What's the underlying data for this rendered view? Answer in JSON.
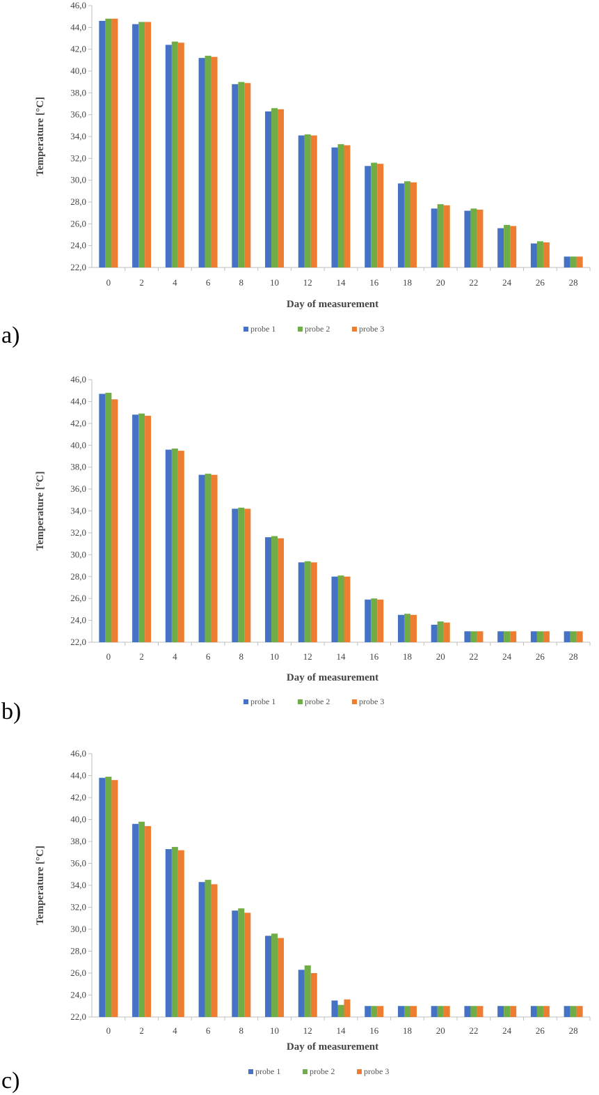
{
  "colors": {
    "probe 1": "#4472c4",
    "probe 2": "#70ad47",
    "probe 3": "#ed7d31"
  },
  "chart_data": [
    {
      "type": "bar",
      "panel_label": "a)",
      "categories": [
        "0",
        "2",
        "4",
        "6",
        "8",
        "10",
        "12",
        "14",
        "16",
        "18",
        "20",
        "22",
        "24",
        "26",
        "28"
      ],
      "series": [
        {
          "name": "probe 1",
          "values": [
            44.6,
            44.3,
            42.4,
            41.2,
            38.8,
            36.3,
            34.1,
            33.0,
            31.3,
            29.7,
            27.4,
            27.2,
            25.6,
            24.2,
            23.0
          ]
        },
        {
          "name": "probe 2",
          "values": [
            44.8,
            44.5,
            42.7,
            41.4,
            39.0,
            36.6,
            34.2,
            33.3,
            31.6,
            29.9,
            27.8,
            27.4,
            25.9,
            24.4,
            23.0
          ]
        },
        {
          "name": "probe 3",
          "values": [
            44.8,
            44.5,
            42.6,
            41.3,
            38.9,
            36.5,
            34.1,
            33.2,
            31.5,
            29.8,
            27.7,
            27.3,
            25.8,
            24.3,
            23.0
          ]
        }
      ],
      "title": "",
      "xlabel": "Day of measurement",
      "ylabel": "Temperature [°C]",
      "ylim": [
        22,
        46
      ],
      "yticks": [
        "22,0",
        "24,0",
        "26,0",
        "28,0",
        "30,0",
        "32,0",
        "34,0",
        "36,0",
        "38,0",
        "40,0",
        "42,0",
        "44,0",
        "46,0"
      ],
      "legend": "bottom",
      "grid": false
    },
    {
      "type": "bar",
      "panel_label": "b)",
      "categories": [
        "0",
        "2",
        "4",
        "6",
        "8",
        "10",
        "12",
        "14",
        "16",
        "18",
        "20",
        "22",
        "24",
        "26",
        "28"
      ],
      "series": [
        {
          "name": "probe 1",
          "values": [
            44.7,
            42.8,
            39.6,
            37.3,
            34.2,
            31.6,
            29.3,
            28.0,
            25.9,
            24.5,
            23.6,
            23.0,
            23.0,
            23.0,
            23.0
          ]
        },
        {
          "name": "probe 2",
          "values": [
            44.8,
            42.9,
            39.7,
            37.4,
            34.3,
            31.7,
            29.4,
            28.1,
            26.0,
            24.6,
            23.9,
            23.0,
            23.0,
            23.0,
            23.0
          ]
        },
        {
          "name": "probe 3",
          "values": [
            44.2,
            42.7,
            39.5,
            37.3,
            34.2,
            31.5,
            29.3,
            28.0,
            25.9,
            24.5,
            23.8,
            23.0,
            23.0,
            23.0,
            23.0
          ]
        }
      ],
      "title": "",
      "xlabel": "Day of measurement",
      "ylabel": "Temperature [°C]",
      "ylim": [
        22,
        46
      ],
      "yticks": [
        "22,0",
        "24,0",
        "26,0",
        "28,0",
        "30,0",
        "32,0",
        "34,0",
        "36,0",
        "38,0",
        "40,0",
        "42,0",
        "44,0",
        "46,0"
      ],
      "legend": "bottom",
      "grid": false
    },
    {
      "type": "bar",
      "panel_label": "c)",
      "categories": [
        "0",
        "2",
        "4",
        "6",
        "8",
        "10",
        "12",
        "14",
        "16",
        "18",
        "20",
        "22",
        "24",
        "26",
        "28"
      ],
      "series": [
        {
          "name": "probe 1",
          "values": [
            43.8,
            39.6,
            37.3,
            34.3,
            31.7,
            29.4,
            26.3,
            23.5,
            23.0,
            23.0,
            23.0,
            23.0,
            23.0,
            23.0,
            23.0
          ]
        },
        {
          "name": "probe 2",
          "values": [
            43.9,
            39.8,
            37.5,
            34.5,
            31.9,
            29.6,
            26.7,
            23.1,
            23.0,
            23.0,
            23.0,
            23.0,
            23.0,
            23.0,
            23.0
          ]
        },
        {
          "name": "probe 3",
          "values": [
            43.6,
            39.4,
            37.2,
            34.1,
            31.5,
            29.2,
            26.0,
            23.6,
            23.0,
            23.0,
            23.0,
            23.0,
            23.0,
            23.0,
            23.0
          ]
        }
      ],
      "title": "",
      "xlabel": "Day of measurement",
      "ylabel": "Temperature [°C]",
      "ylim": [
        22,
        46
      ],
      "yticks": [
        "22,0",
        "24,0",
        "26,0",
        "28,0",
        "30,0",
        "32,0",
        "34,0",
        "36,0",
        "38,0",
        "40,0",
        "42,0",
        "44,0",
        "46,0"
      ],
      "legend": "bottom",
      "grid": false
    }
  ]
}
